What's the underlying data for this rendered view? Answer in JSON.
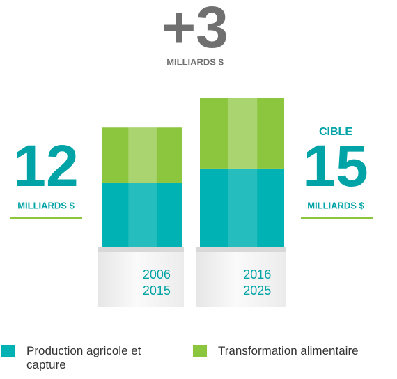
{
  "chart_data": {
    "type": "bar",
    "stacked": true,
    "categories": [
      [
        "2006",
        "2015"
      ],
      [
        "2016",
        "2025"
      ]
    ],
    "series": [
      {
        "name": "Production agricole et capture",
        "color": "#00b2b3",
        "values": [
          6.5,
          7.9
        ]
      },
      {
        "name": "Transformation alimentaire",
        "color": "#8cc63f",
        "values": [
          5.5,
          7.1
        ]
      }
    ],
    "ylim": [
      0,
      16
    ],
    "annotations": {
      "left": {
        "value": "12",
        "unit": "MILLIARDS $"
      },
      "right": {
        "label": "CIBLE",
        "value": "15",
        "unit": "MILLIARDS $"
      },
      "top": {
        "value": "+3",
        "unit": "MILLIARDS $"
      }
    }
  }
}
